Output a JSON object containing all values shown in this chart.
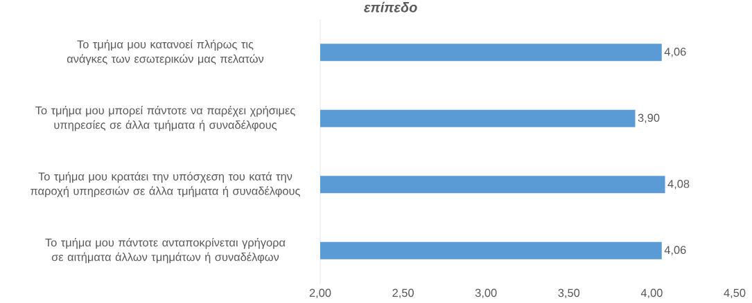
{
  "chart_data": {
    "type": "bar",
    "orientation": "horizontal",
    "title": "επίπεδο",
    "categories": [
      "Το τμήμα μου κατανοεί πλήρως τις ανάγκες των εσωτερικών μας πελατών",
      "Το τμήμα μου μπορεί πάντοτε να παρέχει χρήσιμες υπηρεσίες σε  άλλα τμήματα ή συναδέλφους",
      "Το τμήμα μου κρατάει την υπόσχεση του κατά την παροχή υπηρεσιών σε άλλα τμήματα ή συναδέλφους",
      "Το τμήμα μου πάντοτε ανταποκρίνεται γρήγορα σε αιτήματα άλλων τμημάτων ή συναδέλφων"
    ],
    "values": [
      4.06,
      3.9,
      4.08,
      4.06
    ],
    "value_labels": [
      "4,06",
      "3,90",
      "4,08",
      "4,06"
    ],
    "color": "#5b9bd5",
    "xlim": [
      2,
      4.5
    ],
    "xticks": [
      {
        "value": 2,
        "label": "2,00"
      },
      {
        "value": 2.5,
        "label": "2,50"
      },
      {
        "value": 3,
        "label": "3,00"
      },
      {
        "value": 3.5,
        "label": "3,50"
      },
      {
        "value": 4,
        "label": "4,00"
      },
      {
        "value": 4.5,
        "label": "4,50"
      }
    ]
  }
}
